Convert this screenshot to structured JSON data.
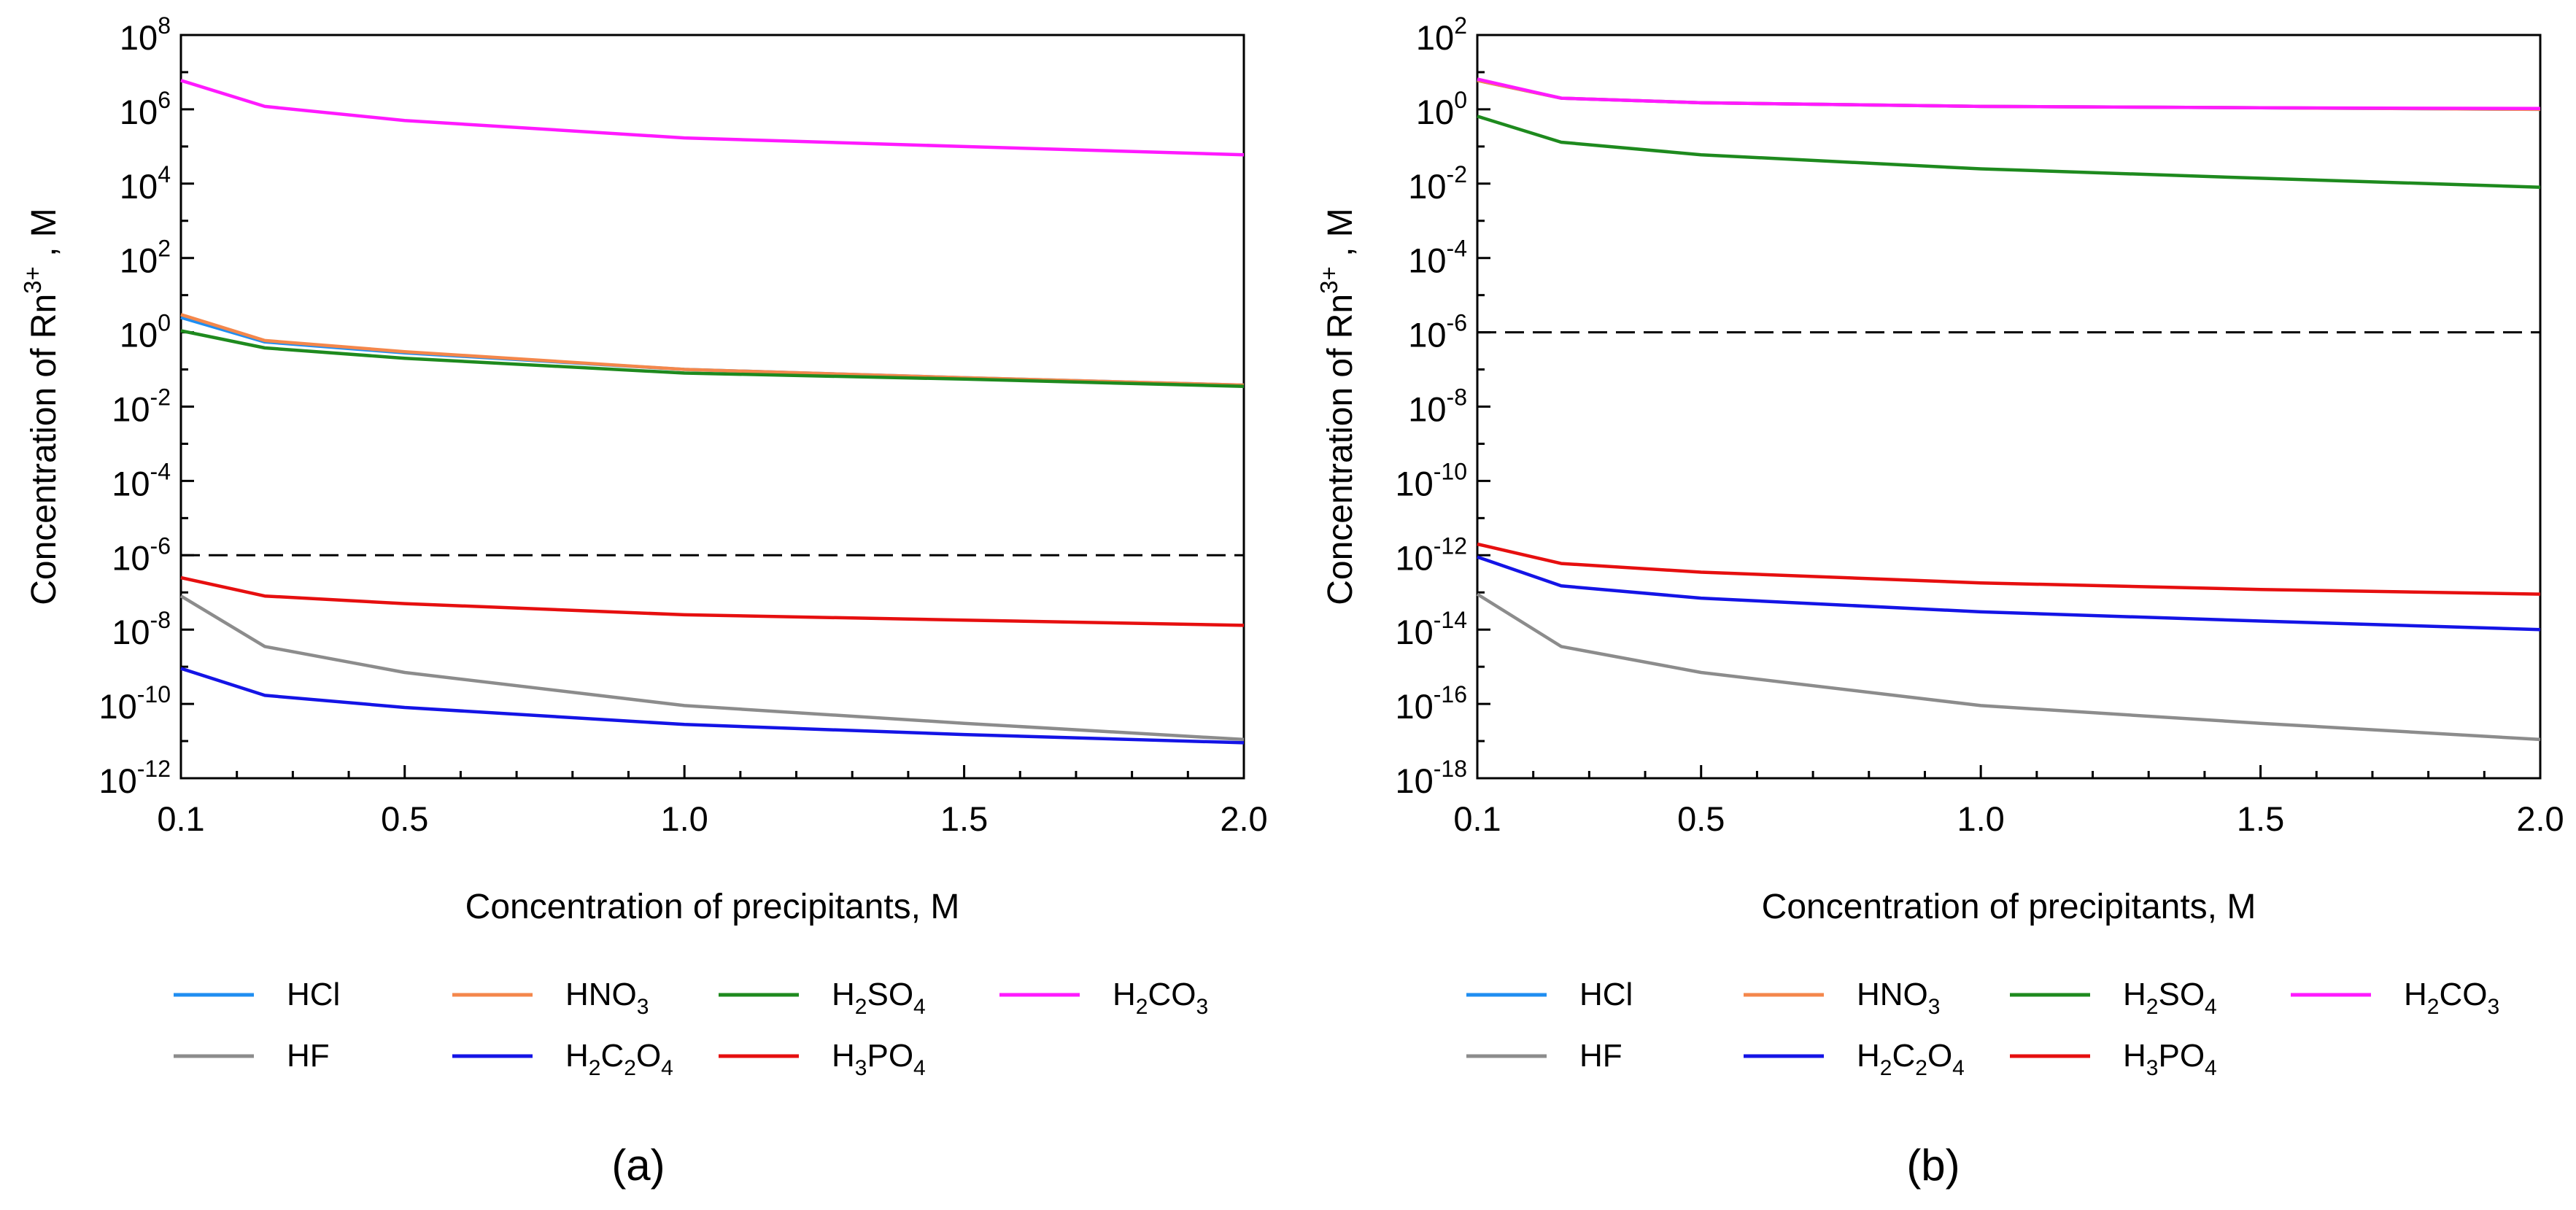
{
  "chart_data": [
    {
      "type": "line",
      "panel_label": "(a)",
      "xlabel": "Concentration of precipitants, M",
      "ylabel_base": "Concentration of Rn",
      "ylabel_sup": "3+",
      "ylabel_tail": ", M",
      "xlim": [
        0.1,
        2.0
      ],
      "x_ticks": [
        0.1,
        0.5,
        1.0,
        1.5,
        2.0
      ],
      "x_tick_labels": [
        "0.1",
        "0.5",
        "1.0",
        "1.5",
        "2.0"
      ],
      "yscale": "log",
      "y_exp_range": [
        -12,
        8
      ],
      "y_tick_base": "10",
      "y_tick_exps": [
        "-12",
        "-10",
        "-8",
        "-6",
        "-4",
        "-2",
        "0",
        "2",
        "4",
        "6",
        "8"
      ],
      "reference_line": {
        "value": 1e-06,
        "style": "dashed",
        "color": "#000000"
      },
      "x": [
        0.1,
        0.25,
        0.5,
        1.0,
        1.5,
        2.0
      ],
      "series": [
        {
          "key": "HCl",
          "color": "#1f8ef1",
          "values": [
            2.5,
            0.55,
            0.28,
            0.1,
            0.06,
            0.038
          ]
        },
        {
          "key": "HNO3",
          "color": "#f4874b",
          "values": [
            3.0,
            0.6,
            0.3,
            0.1,
            0.06,
            0.038
          ]
        },
        {
          "key": "H2SO4",
          "color": "#1e8a1e",
          "values": [
            1.1,
            0.38,
            0.2,
            0.08,
            0.055,
            0.035
          ]
        },
        {
          "key": "H2CO3",
          "color": "#ff1aff",
          "values": [
            6000000.0,
            1200000.0,
            500000.0,
            170000.0,
            100000.0,
            60000.0
          ]
        },
        {
          "key": "HF",
          "color": "#8c8c8c",
          "values": [
            8e-08,
            3.5e-09,
            7e-10,
            9e-11,
            3e-11,
            1.1e-11
          ]
        },
        {
          "key": "H2C2O4",
          "color": "#1414e6",
          "values": [
            9e-10,
            1.7e-10,
            8e-11,
            2.8e-11,
            1.5e-11,
            9e-12
          ]
        },
        {
          "key": "H3PO4",
          "color": "#e60f0f",
          "values": [
            2.5e-07,
            8e-08,
            5e-08,
            2.5e-08,
            1.8e-08,
            1.3e-08
          ]
        }
      ]
    },
    {
      "type": "line",
      "panel_label": "(b)",
      "xlabel": "Concentration of precipitants, M",
      "ylabel_base": "Concentration of Rn",
      "ylabel_sup": "3+",
      "ylabel_tail": ", M",
      "xlim": [
        0.1,
        2.0
      ],
      "x_ticks": [
        0.1,
        0.5,
        1.0,
        1.5,
        2.0
      ],
      "x_tick_labels": [
        "0.1",
        "0.5",
        "1.0",
        "1.5",
        "2.0"
      ],
      "yscale": "log",
      "y_exp_range": [
        -18,
        2
      ],
      "y_tick_base": "10",
      "y_tick_exps": [
        "-18",
        "-16",
        "-14",
        "-12",
        "-10",
        "-8",
        "-6",
        "-4",
        "-2",
        "0",
        "2"
      ],
      "reference_line": {
        "value": 1e-06,
        "style": "dashed",
        "color": "#000000"
      },
      "x": [
        0.1,
        0.25,
        0.5,
        1.0,
        1.5,
        2.0
      ],
      "series": [
        {
          "key": "HCl",
          "color": "#1f8ef1",
          "values": [
            6,
            2,
            1.5,
            1.2,
            1.1,
            1.0
          ]
        },
        {
          "key": "HNO3",
          "color": "#f4874b",
          "values": [
            6,
            2,
            1.5,
            1.2,
            1.1,
            1.0
          ]
        },
        {
          "key": "H2SO4",
          "color": "#1e8a1e",
          "values": [
            0.65,
            0.13,
            0.06,
            0.025,
            0.014,
            0.008
          ]
        },
        {
          "key": "H2CO3",
          "color": "#ff1aff",
          "values": [
            6.5,
            2.0,
            1.5,
            1.2,
            1.1,
            1.05
          ]
        },
        {
          "key": "HF",
          "color": "#8c8c8c",
          "values": [
            9e-14,
            3.5e-15,
            7e-16,
            9e-17,
            3e-17,
            1.1e-17
          ]
        },
        {
          "key": "H2C2O4",
          "color": "#1414e6",
          "values": [
            9e-13,
            1.5e-13,
            7e-14,
            3e-14,
            1.7e-14,
            1e-14
          ]
        },
        {
          "key": "H3PO4",
          "color": "#e60f0f",
          "values": [
            2e-12,
            6e-13,
            3.5e-13,
            1.8e-13,
            1.2e-13,
            9e-14
          ]
        }
      ]
    }
  ],
  "legend": [
    {
      "key": "HCl",
      "segments": [
        {
          "t": "HCl"
        }
      ]
    },
    {
      "key": "HNO3",
      "segments": [
        {
          "t": "HNO"
        },
        {
          "t": "3",
          "s": "sub"
        }
      ]
    },
    {
      "key": "H2SO4",
      "segments": [
        {
          "t": "H"
        },
        {
          "t": "2",
          "s": "sub"
        },
        {
          "t": "SO"
        },
        {
          "t": "4",
          "s": "sub"
        }
      ]
    },
    {
      "key": "H2CO3",
      "segments": [
        {
          "t": "H"
        },
        {
          "t": "2",
          "s": "sub"
        },
        {
          "t": "CO"
        },
        {
          "t": "3",
          "s": "sub"
        }
      ]
    },
    {
      "key": "HF",
      "segments": [
        {
          "t": "HF"
        }
      ]
    },
    {
      "key": "H2C2O4",
      "segments": [
        {
          "t": "H"
        },
        {
          "t": "2",
          "s": "sub"
        },
        {
          "t": "C"
        },
        {
          "t": "2",
          "s": "sub"
        },
        {
          "t": "O"
        },
        {
          "t": "4",
          "s": "sub"
        }
      ]
    },
    {
      "key": "H3PO4",
      "segments": [
        {
          "t": "H"
        },
        {
          "t": "3",
          "s": "sub"
        },
        {
          "t": "PO"
        },
        {
          "t": "4",
          "s": "sub"
        }
      ]
    }
  ],
  "legend_colors": {
    "HCl": "#1f8ef1",
    "HNO3": "#f4874b",
    "H2SO4": "#1e8a1e",
    "H2CO3": "#ff1aff",
    "HF": "#8c8c8c",
    "H2C2O4": "#1414e6",
    "H3PO4": "#e60f0f"
  }
}
